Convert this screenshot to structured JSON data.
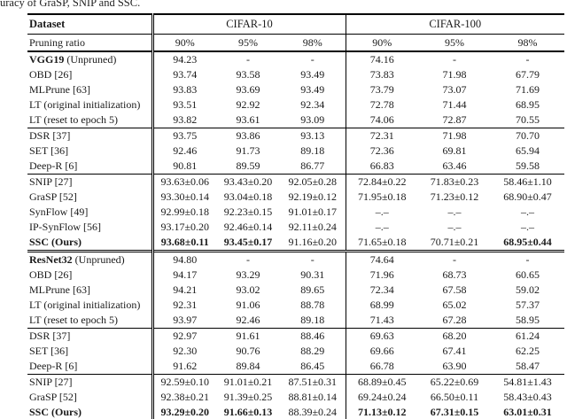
{
  "caption_fragment": "uracy of GraSP, SNIP and SSC.",
  "colors": {
    "text": "#1a1a1a",
    "rule": "#000000",
    "background": "#ffffff"
  },
  "table": {
    "header": {
      "dataset_label": "Dataset",
      "pruning_label": "Pruning ratio",
      "groups": [
        {
          "label": "CIFAR-10",
          "ratios": [
            "90%",
            "95%",
            "98%"
          ]
        },
        {
          "label": "CIFAR-100",
          "ratios": [
            "90%",
            "95%",
            "98%"
          ]
        }
      ]
    },
    "sections": [
      {
        "divider": "none",
        "rows": [
          {
            "method_strong": "VGG19",
            "method": " (Unpruned)",
            "values": [
              "94.23",
              "-",
              "-",
              "74.16",
              "-",
              "-"
            ],
            "bold": []
          },
          {
            "method_strong": "",
            "method": "OBD [26]",
            "values": [
              "93.74",
              "93.58",
              "93.49",
              "73.83",
              "71.98",
              "67.79"
            ],
            "bold": []
          },
          {
            "method_strong": "",
            "method": "MLPrune [63]",
            "values": [
              "93.83",
              "93.69",
              "93.49",
              "73.79",
              "73.07",
              "71.69"
            ],
            "bold": []
          },
          {
            "method_strong": "",
            "method": "LT (original initialization)",
            "values": [
              "93.51",
              "92.92",
              "92.34",
              "72.78",
              "71.44",
              "68.95"
            ],
            "bold": []
          },
          {
            "method_strong": "",
            "method": "LT (reset to epoch 5)",
            "values": [
              "93.82",
              "93.61",
              "93.09",
              "74.06",
              "72.87",
              "70.55"
            ],
            "bold": []
          }
        ]
      },
      {
        "divider": "thin",
        "rows": [
          {
            "method_strong": "",
            "method": "DSR [37]",
            "values": [
              "93.75",
              "93.86",
              "93.13",
              "72.31",
              "71.98",
              "70.70"
            ],
            "bold": []
          },
          {
            "method_strong": "",
            "method": "SET [36]",
            "values": [
              "92.46",
              "91.73",
              "89.18",
              "72.36",
              "69.81",
              "65.94"
            ],
            "bold": []
          },
          {
            "method_strong": "",
            "method": "Deep-R [6]",
            "values": [
              "90.81",
              "89.59",
              "86.77",
              "66.83",
              "63.46",
              "59.58"
            ],
            "bold": []
          }
        ]
      },
      {
        "divider": "thin",
        "rows": [
          {
            "method_strong": "",
            "method": "SNIP [27]",
            "values": [
              "93.63±0.06",
              "93.43±0.20",
              "92.05±0.28",
              "72.84±0.22",
              "71.83±0.23",
              "58.46±1.10"
            ],
            "bold": []
          },
          {
            "method_strong": "",
            "method": "GraSP [52]",
            "values": [
              "93.30±0.14",
              "93.04±0.18",
              "92.19±0.12",
              "71.95±0.18",
              "71.23±0.12",
              "68.90±0.47"
            ],
            "bold": []
          },
          {
            "method_strong": "",
            "method": "SynFlow [49]",
            "values": [
              "92.99±0.18",
              "92.23±0.15",
              "91.01±0.17",
              "–.–",
              "–.–",
              "–.–"
            ],
            "bold": []
          },
          {
            "method_strong": "",
            "method": "IP-SynFlow [56]",
            "values": [
              "93.17±0.20",
              "92.46±0.14",
              "92.11±0.24",
              "–.–",
              "–.–",
              "–.–"
            ],
            "bold": []
          },
          {
            "method_strong": "SSC (Ours)",
            "method": "",
            "values": [
              "93.68±0.11",
              "93.45±0.17",
              "91.16±0.20",
              "71.65±0.18",
              "70.71±0.21",
              "68.95±0.44"
            ],
            "bold": [
              0,
              1,
              5
            ]
          }
        ]
      },
      {
        "divider": "double",
        "rows": [
          {
            "method_strong": "ResNet32",
            "method": " (Unpruned)",
            "values": [
              "94.80",
              "-",
              "-",
              "74.64",
              "-",
              "-"
            ],
            "bold": []
          },
          {
            "method_strong": "",
            "method": "OBD [26]",
            "values": [
              "94.17",
              "93.29",
              "90.31",
              "71.96",
              "68.73",
              "60.65"
            ],
            "bold": []
          },
          {
            "method_strong": "",
            "method": "MLPrune [63]",
            "values": [
              "94.21",
              "93.02",
              "89.65",
              "72.34",
              "67.58",
              "59.02"
            ],
            "bold": []
          },
          {
            "method_strong": "",
            "method": "LT (original initialization)",
            "values": [
              "92.31",
              "91.06",
              "88.78",
              "68.99",
              "65.02",
              "57.37"
            ],
            "bold": []
          },
          {
            "method_strong": "",
            "method": "LT (reset to epoch 5)",
            "values": [
              "93.97",
              "92.46",
              "89.18",
              "71.43",
              "67.28",
              "58.95"
            ],
            "bold": []
          }
        ]
      },
      {
        "divider": "thin",
        "rows": [
          {
            "method_strong": "",
            "method": "DSR [37]",
            "values": [
              "92.97",
              "91.61",
              "88.46",
              "69.63",
              "68.20",
              "61.24"
            ],
            "bold": []
          },
          {
            "method_strong": "",
            "method": "SET [36]",
            "values": [
              "92.30",
              "90.76",
              "88.29",
              "69.66",
              "67.41",
              "62.25"
            ],
            "bold": []
          },
          {
            "method_strong": "",
            "method": "Deep-R [6]",
            "values": [
              "91.62",
              "89.84",
              "86.45",
              "66.78",
              "63.90",
              "58.47"
            ],
            "bold": []
          }
        ]
      },
      {
        "divider": "thin",
        "rows": [
          {
            "method_strong": "",
            "method": "SNIP [27]",
            "values": [
              "92.59±0.10",
              "91.01±0.21",
              "87.51±0.31",
              "68.89±0.45",
              "65.22±0.69",
              "54.81±1.43"
            ],
            "bold": []
          },
          {
            "method_strong": "",
            "method": "GraSP [52]",
            "values": [
              "92.38±0.21",
              "91.39±0.25",
              "88.81±0.14",
              "69.24±0.24",
              "66.50±0.11",
              "58.43±0.43"
            ],
            "bold": []
          },
          {
            "method_strong": "SSC (Ours)",
            "method": "",
            "values": [
              "93.29±0.20",
              "91.66±0.13",
              "88.39±0.24",
              "71.13±0.12",
              "67.31±0.15",
              "63.01±0.31"
            ],
            "bold": [
              0,
              1,
              3,
              4,
              5
            ]
          }
        ]
      }
    ]
  }
}
